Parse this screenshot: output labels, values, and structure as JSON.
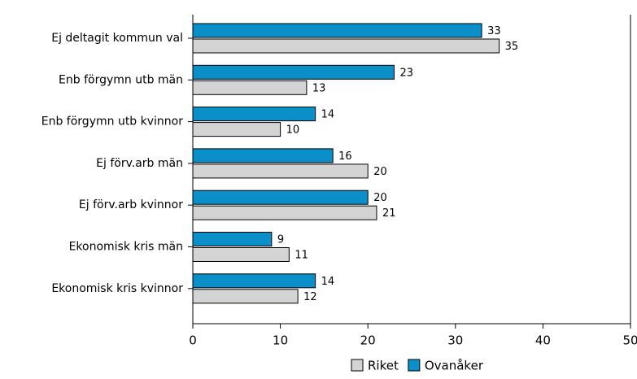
{
  "chart_data": {
    "type": "barh",
    "categories": [
      "Ej deltagit kommun val",
      "Enb förgymn utb män",
      "Enb förgymn utb kvinnor",
      "Ej förv.arb män",
      "Ej förv.arb kvinnor",
      "Ekonomisk kris män",
      "Ekonomisk kris kvinnor"
    ],
    "series": [
      {
        "name": "Riket",
        "color": "#d4d4d4",
        "values": [
          35,
          13,
          10,
          20,
          21,
          11,
          12
        ]
      },
      {
        "name": "Ovanåker",
        "color": "#0a8fc8",
        "values": [
          33,
          23,
          14,
          16,
          20,
          9,
          14
        ]
      }
    ],
    "xlim": [
      0,
      50
    ],
    "xticks": [
      0,
      10,
      20,
      30,
      40,
      50
    ],
    "legend": "bottom"
  }
}
